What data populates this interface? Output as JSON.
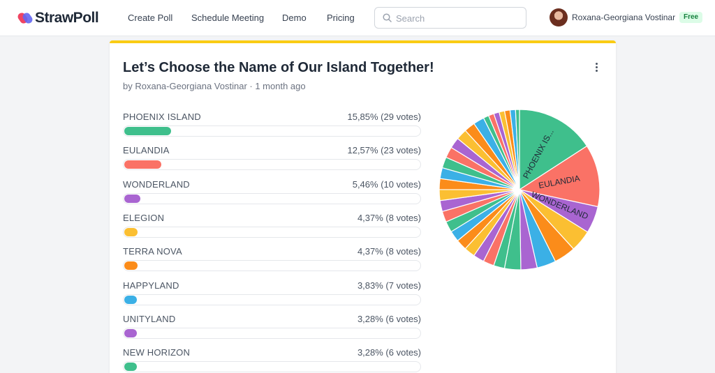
{
  "nav": {
    "logo": "StrawPoll",
    "links": [
      "Create Poll",
      "Schedule Meeting",
      "Demo",
      "Pricing"
    ],
    "search_placeholder": "Search",
    "user_name": "Roxana-Georgiana Vostinar",
    "plan_badge": "Free"
  },
  "poll": {
    "title": "Let’s Choose the Name of Our Island Together!",
    "meta": "by Roxana-Georgiana Vostinar · 1 month ago",
    "options": [
      {
        "label": "PHOENIX ISLAND",
        "result": "15,85% (29 votes)",
        "percent": 15.85,
        "color": "#3fbf8c"
      },
      {
        "label": "EULANDIA",
        "result": "12,57% (23 votes)",
        "percent": 12.57,
        "color": "#fa7266"
      },
      {
        "label": "WONDERLAND",
        "result": "5,46% (10 votes)",
        "percent": 5.46,
        "color": "#a965d1"
      },
      {
        "label": "ELEGION",
        "result": "4,37% (8 votes)",
        "percent": 4.37,
        "color": "#fbbf32"
      },
      {
        "label": "TERRA NOVA",
        "result": "4,37% (8 votes)",
        "percent": 4.37,
        "color": "#fb8c1a"
      },
      {
        "label": "HAPPYLAND",
        "result": "3,83% (7 votes)",
        "percent": 3.83,
        "color": "#3bb0e6"
      },
      {
        "label": "UNITYLAND",
        "result": "3,28% (6 votes)",
        "percent": 3.28,
        "color": "#a965d1"
      },
      {
        "label": "NEW HORIZON",
        "result": "3,28% (6 votes)",
        "percent": 3.28,
        "color": "#3fbf8c"
      }
    ]
  },
  "chart_data": {
    "type": "pie",
    "slice_labels": [
      "PHOENIX IS...",
      "EULANDIA",
      "WONDERLAND"
    ],
    "slice_colors": [
      "#3fbf8c",
      "#fa7266",
      "#a965d1",
      "#fbbf32",
      "#fb8c1a",
      "#3bb0e6"
    ]
  }
}
